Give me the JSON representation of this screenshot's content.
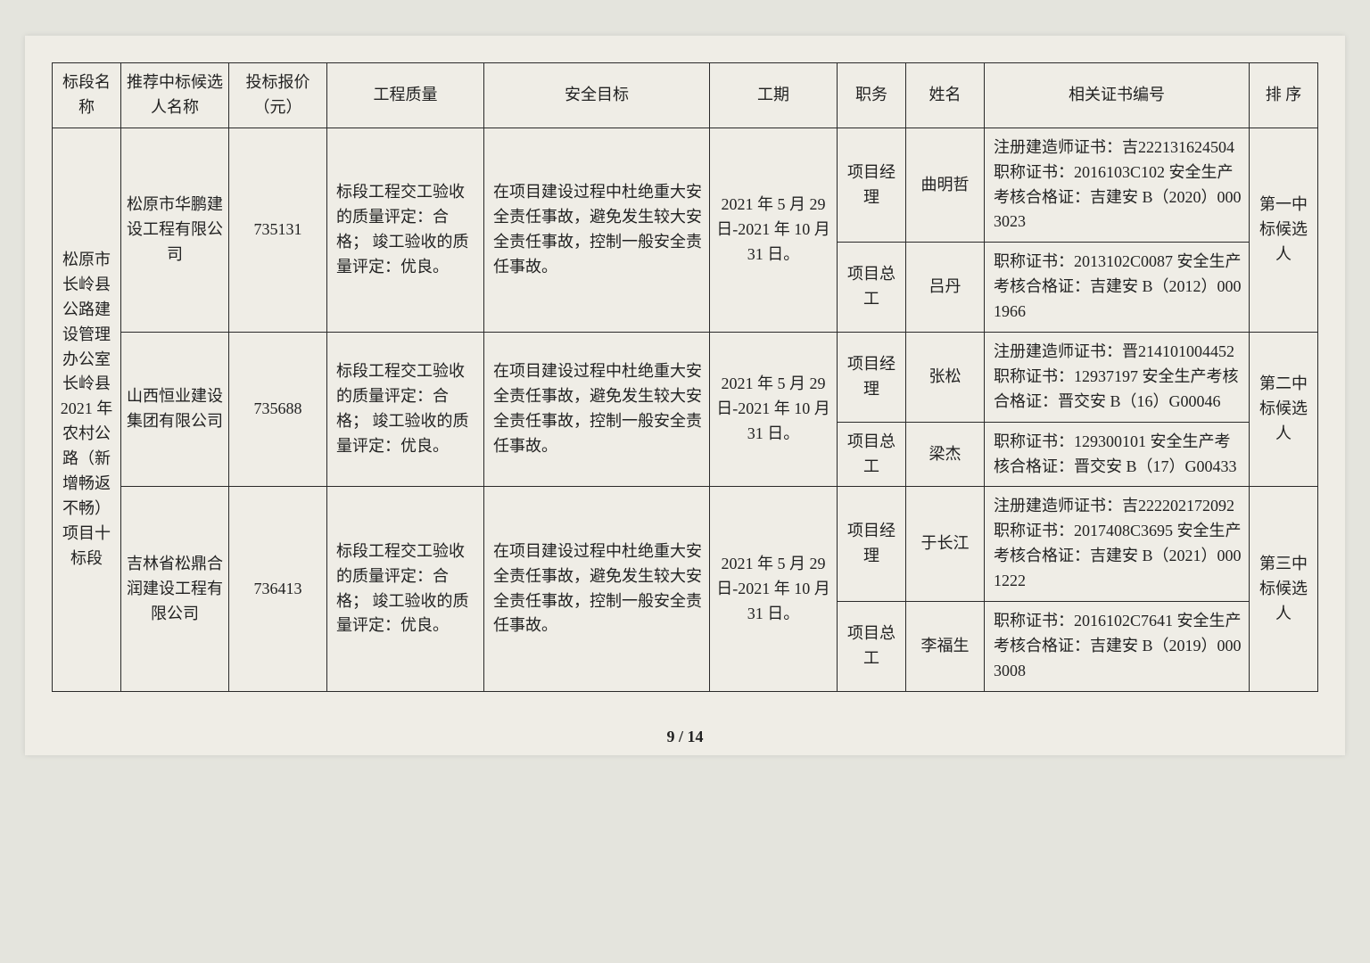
{
  "headers": {
    "col1": "标段名称",
    "col2": "推荐中标候选人名称",
    "col3": "投标报价（元）",
    "col4": "工程质量",
    "col5": "安全目标",
    "col6": "工期",
    "col7": "职务",
    "col8": "姓名",
    "col9": "相关证书编号",
    "col10": "排 序"
  },
  "section_name": "松原市长岭县公路建设管理办公室长岭县 2021 年农村公路（新增畅返不畅）项目十标段",
  "common": {
    "quality": "标段工程交工验收的质量评定：合格；\n竣工验收的质量评定：优良。",
    "safety": "在项目建设过程中杜绝重大安全责任事故，避免发生较大安全责任事故，控制一般安全责任事故。",
    "period": "2021 年 5 月 29 日-2021 年 10 月 31 日。",
    "role_pm": "项目经理",
    "role_ce": "项目总工"
  },
  "bidders": [
    {
      "name": "松原市华鹏建设工程有限公司",
      "price": "735131",
      "rank": "第一中标候选人",
      "pm_name": "曲明哲",
      "pm_cert": "注册建造师证书：吉222131624504\n职称证书：2016103C102\n安全生产考核合格证：吉建安 B（2020）0003023",
      "ce_name": "吕丹",
      "ce_cert": "职称证书：2013102C0087\n安全生产考核合格证：吉建安 B（2012）0001966"
    },
    {
      "name": "山西恒业建设集团有限公司",
      "price": "735688",
      "rank": "第二中标候选人",
      "pm_name": "张松",
      "pm_cert": "注册建造师证书：晋214101004452\n职称证书：12937197\n安全生产考核合格证：晋交安 B（16）G00046",
      "ce_name": "梁杰",
      "ce_cert": "职称证书：129300101\n安全生产考核合格证：晋交安 B（17）G00433"
    },
    {
      "name": "吉林省松鼎合润建设工程有限公司",
      "price": "736413",
      "rank": "第三中标候选人",
      "pm_name": "于长江",
      "pm_cert": "注册建造师证书：吉222202172092\n职称证书：2017408C3695\n安全生产考核合格证：吉建安 B（2021）0001222",
      "ce_name": "李福生",
      "ce_cert": "职称证书：2016102C7641\n安全生产考核合格证：吉建安 B（2019）0003008"
    }
  ],
  "footer": "9 / 14"
}
